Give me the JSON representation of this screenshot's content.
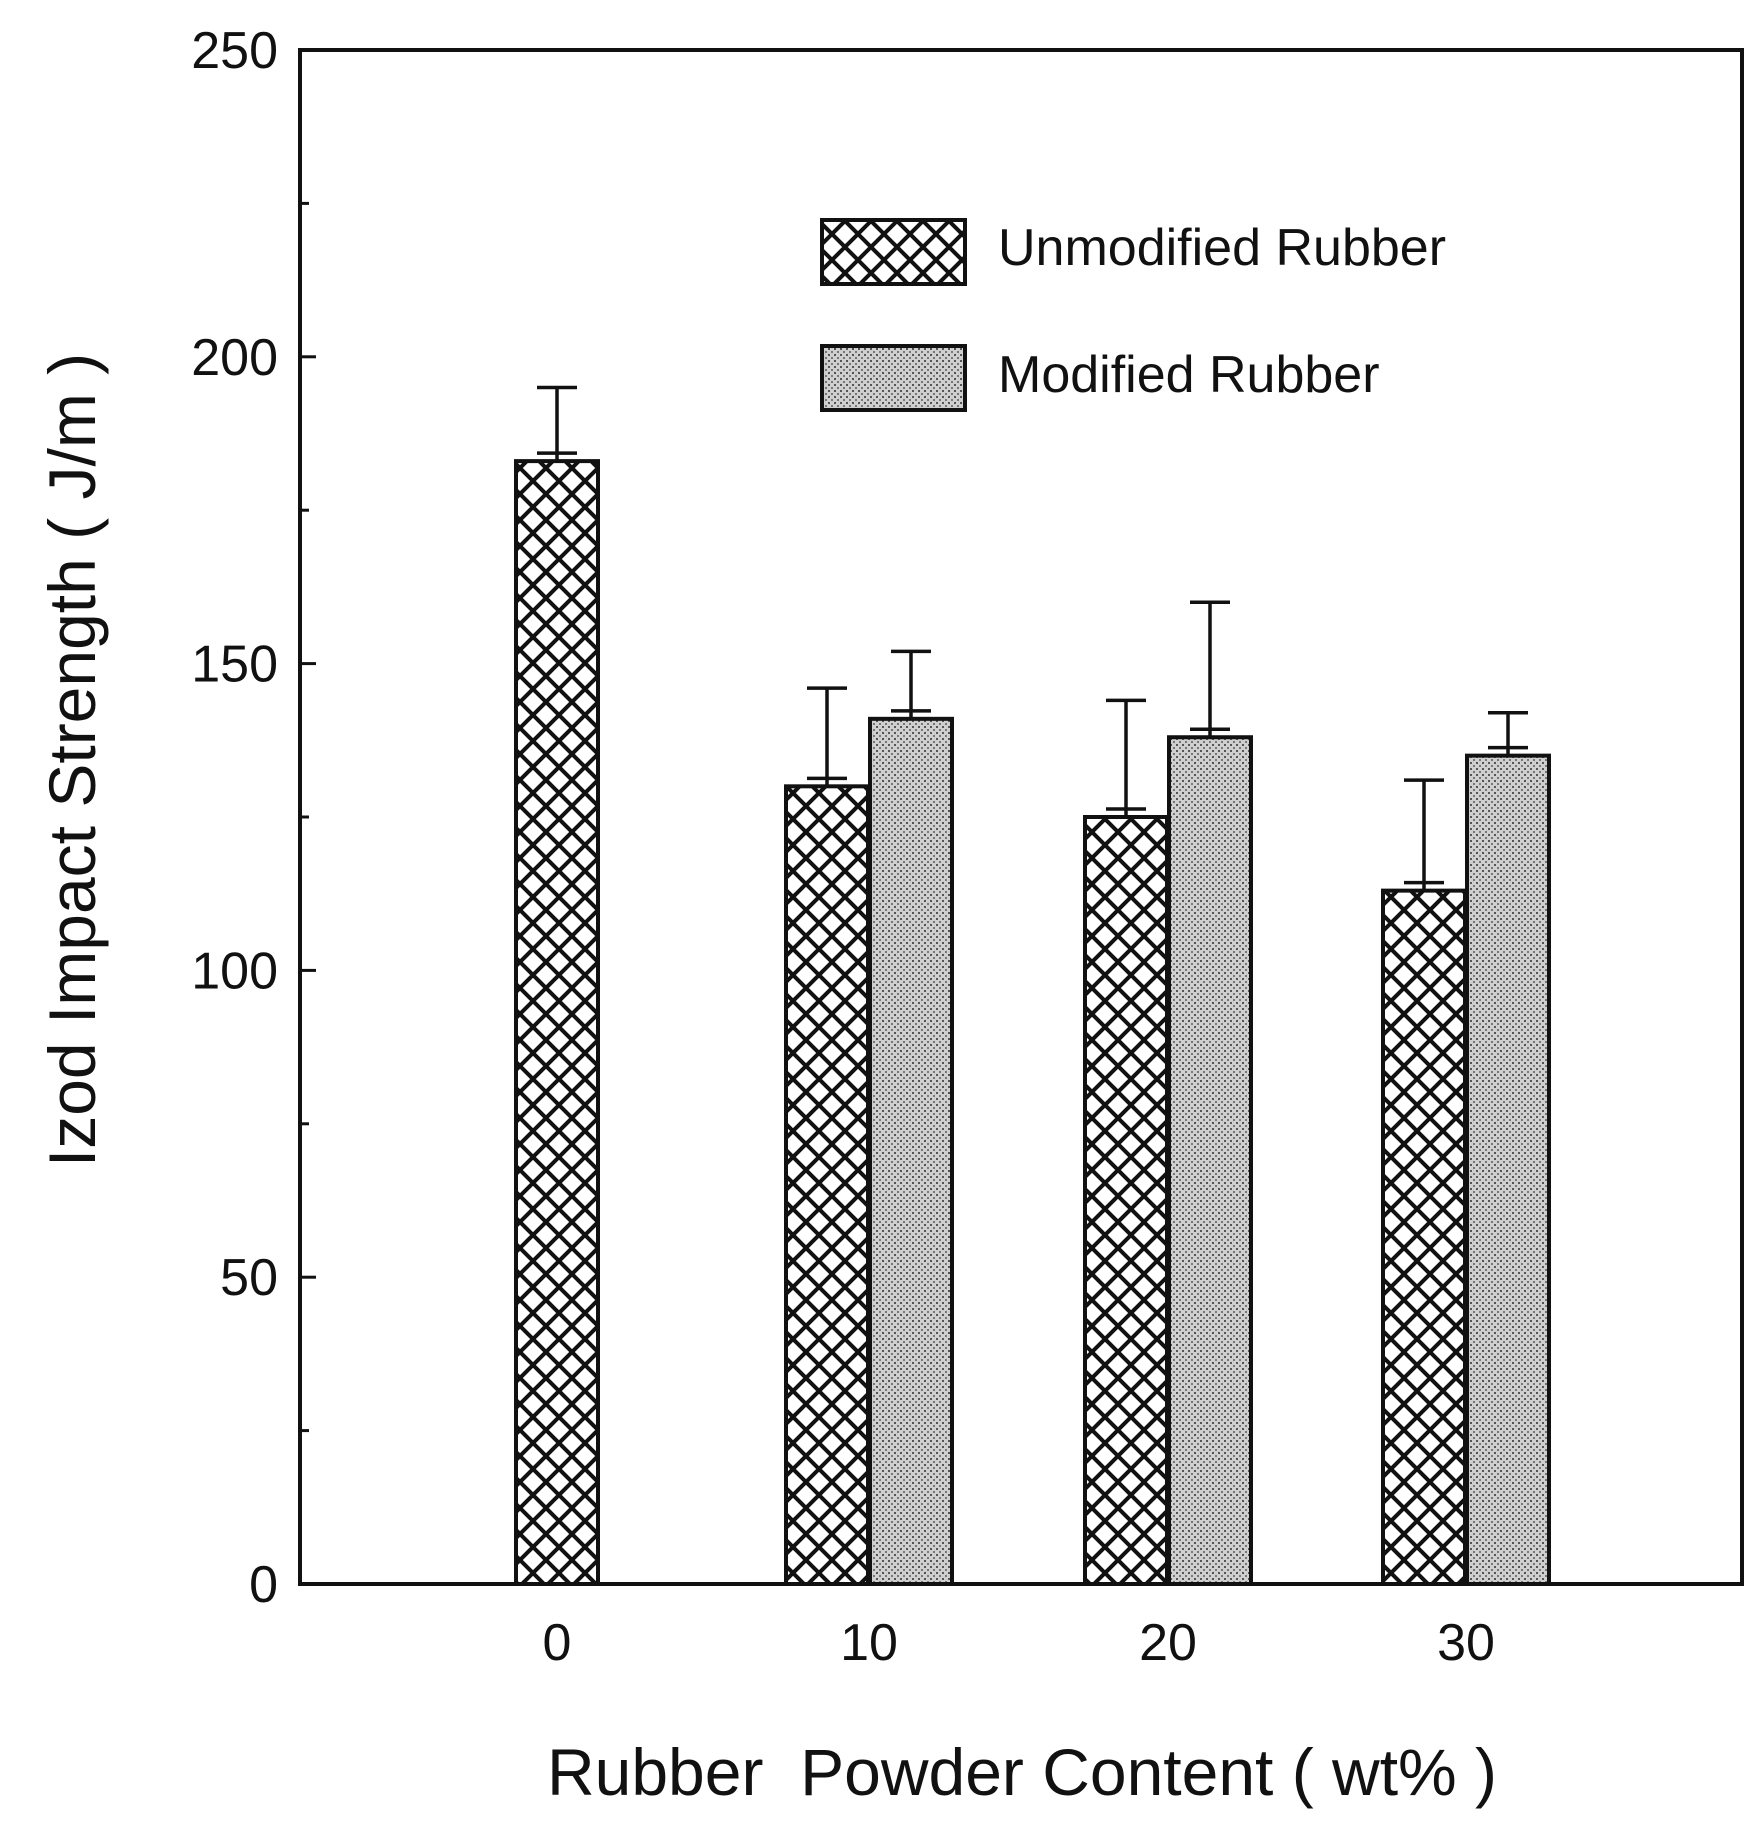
{
  "chart_data": {
    "type": "bar",
    "xlabel": "Rubber  Powder Content ( wt% )",
    "ylabel": "Izod  Impact  Strength ( J/m )",
    "ylim": [
      0,
      250
    ],
    "yticks": [
      0,
      50,
      100,
      150,
      200,
      250
    ],
    "categories": [
      "0",
      "10",
      "20",
      "30"
    ],
    "grid": false,
    "legend_position": "top-right",
    "series": [
      {
        "name": "Unmodified Rubber",
        "pattern": "crosshatch",
        "values": [
          183,
          130,
          125,
          113
        ],
        "error": [
          12,
          16,
          19,
          18
        ]
      },
      {
        "name": "Modified Rubber",
        "pattern": "dotted-gray",
        "values": [
          null,
          141,
          138,
          135
        ],
        "error": [
          null,
          11,
          22,
          7
        ]
      }
    ]
  },
  "colors": {
    "axis": "#111111",
    "bar_fill": "#ffffff",
    "dot_fill": "#d9d9d9"
  }
}
